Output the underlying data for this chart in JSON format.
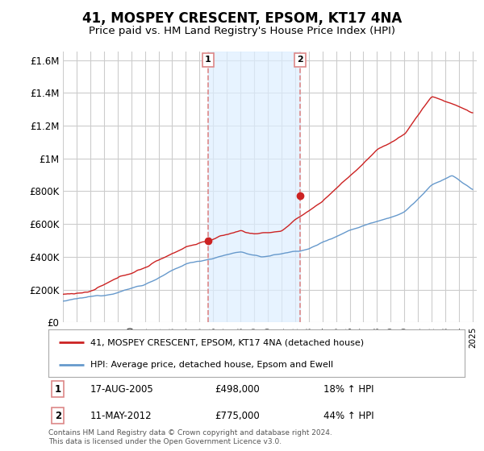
{
  "title": "41, MOSPEY CRESCENT, EPSOM, KT17 4NA",
  "subtitle": "Price paid vs. HM Land Registry's House Price Index (HPI)",
  "footnote": "Contains HM Land Registry data © Crown copyright and database right 2024.\nThis data is licensed under the Open Government Licence v3.0.",
  "legend_line1": "41, MOSPEY CRESCENT, EPSOM, KT17 4NA (detached house)",
  "legend_line2": "HPI: Average price, detached house, Epsom and Ewell",
  "transaction1_date": "17-AUG-2005",
  "transaction1_price": "£498,000",
  "transaction1_hpi": "18% ↑ HPI",
  "transaction2_date": "11-MAY-2012",
  "transaction2_price": "£775,000",
  "transaction2_hpi": "44% ↑ HPI",
  "ytick_labels": [
    "£0",
    "£200K",
    "£400K",
    "£600K",
    "£800K",
    "£1M",
    "£1.2M",
    "£1.4M",
    "£1.6M"
  ],
  "ytick_values": [
    0,
    200000,
    400000,
    600000,
    800000,
    1000000,
    1200000,
    1400000,
    1600000
  ],
  "ymax": 1650000,
  "red_color": "#cc2222",
  "blue_color": "#6699cc",
  "marker_color": "#cc2222",
  "vline_color": "#dd8888",
  "shade_color": "#ddeeff",
  "background_color": "#ffffff",
  "plot_bg_color": "#ffffff",
  "grid_color": "#cccccc",
  "title_fontsize": 12,
  "subtitle_fontsize": 9.5,
  "transaction1_year": 2005.63,
  "transaction2_year": 2012.37,
  "t1_price": 498000,
  "t2_price": 775000
}
